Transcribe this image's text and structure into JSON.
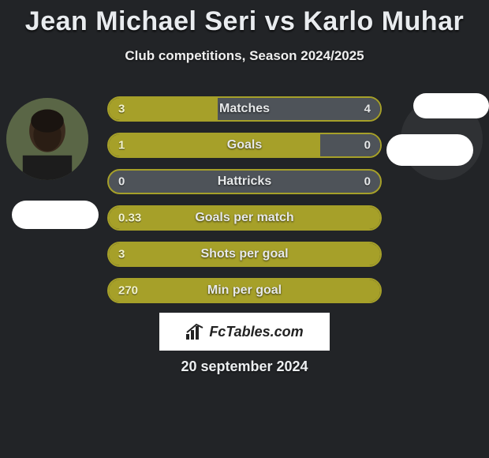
{
  "title": "Jean Michael Seri vs Karlo Muhar",
  "subtitle": "Club competitions, Season 2024/2025",
  "date": "20 september 2024",
  "branding_text": "FcTables.com",
  "colors": {
    "olive": "#a6a029",
    "olive_border": "#a6a029",
    "neutral_fill": "#4e5359",
    "neutral_border": "#a6a029",
    "value_text_light": "#f3f4d0",
    "value_text_neutral": "#e7e9ea",
    "background": "#222427",
    "flag_bg": "#ffffff",
    "avatar_bg": "#3a3a3a"
  },
  "bars": [
    {
      "label": "Matches",
      "left_value": "3",
      "right_value": "4",
      "left_pct": 40,
      "right_pct": 60,
      "left_fill": "#a6a029",
      "right_fill": "#4e5359",
      "right_value_color": "#e7e9ea",
      "left_value_color": "#f3f4d0",
      "border_color": "#a6a029",
      "show_right_value": true
    },
    {
      "label": "Goals",
      "left_value": "1",
      "right_value": "0",
      "left_pct": 78,
      "right_pct": 22,
      "left_fill": "#a6a029",
      "right_fill": "#4e5359",
      "right_value_color": "#e7e9ea",
      "left_value_color": "#f3f4d0",
      "border_color": "#a6a029",
      "show_right_value": true
    },
    {
      "label": "Hattricks",
      "left_value": "0",
      "right_value": "0",
      "left_pct": 0,
      "right_pct": 0,
      "left_fill": "transparent",
      "right_fill": "transparent",
      "right_value_color": "#e7e9ea",
      "left_value_color": "#e7e9ea",
      "border_color": "#a6a029",
      "show_right_value": true,
      "row_bg": "#4e5359"
    },
    {
      "label": "Goals per match",
      "left_value": "0.33",
      "right_value": "",
      "left_pct": 100,
      "right_pct": 0,
      "left_fill": "#a6a029",
      "right_fill": "transparent",
      "left_value_color": "#f3f4d0",
      "right_value_color": "#e7e9ea",
      "border_color": "#a6a029",
      "show_right_value": false
    },
    {
      "label": "Shots per goal",
      "left_value": "3",
      "right_value": "",
      "left_pct": 100,
      "right_pct": 0,
      "left_fill": "#a6a029",
      "right_fill": "transparent",
      "left_value_color": "#f3f4d0",
      "right_value_color": "#e7e9ea",
      "border_color": "#a6a029",
      "show_right_value": false
    },
    {
      "label": "Min per goal",
      "left_value": "270",
      "right_value": "",
      "left_pct": 100,
      "right_pct": 0,
      "left_fill": "#a6a029",
      "right_fill": "transparent",
      "left_value_color": "#f3f4d0",
      "right_value_color": "#e7e9ea",
      "border_color": "#a6a029",
      "show_right_value": false
    }
  ]
}
